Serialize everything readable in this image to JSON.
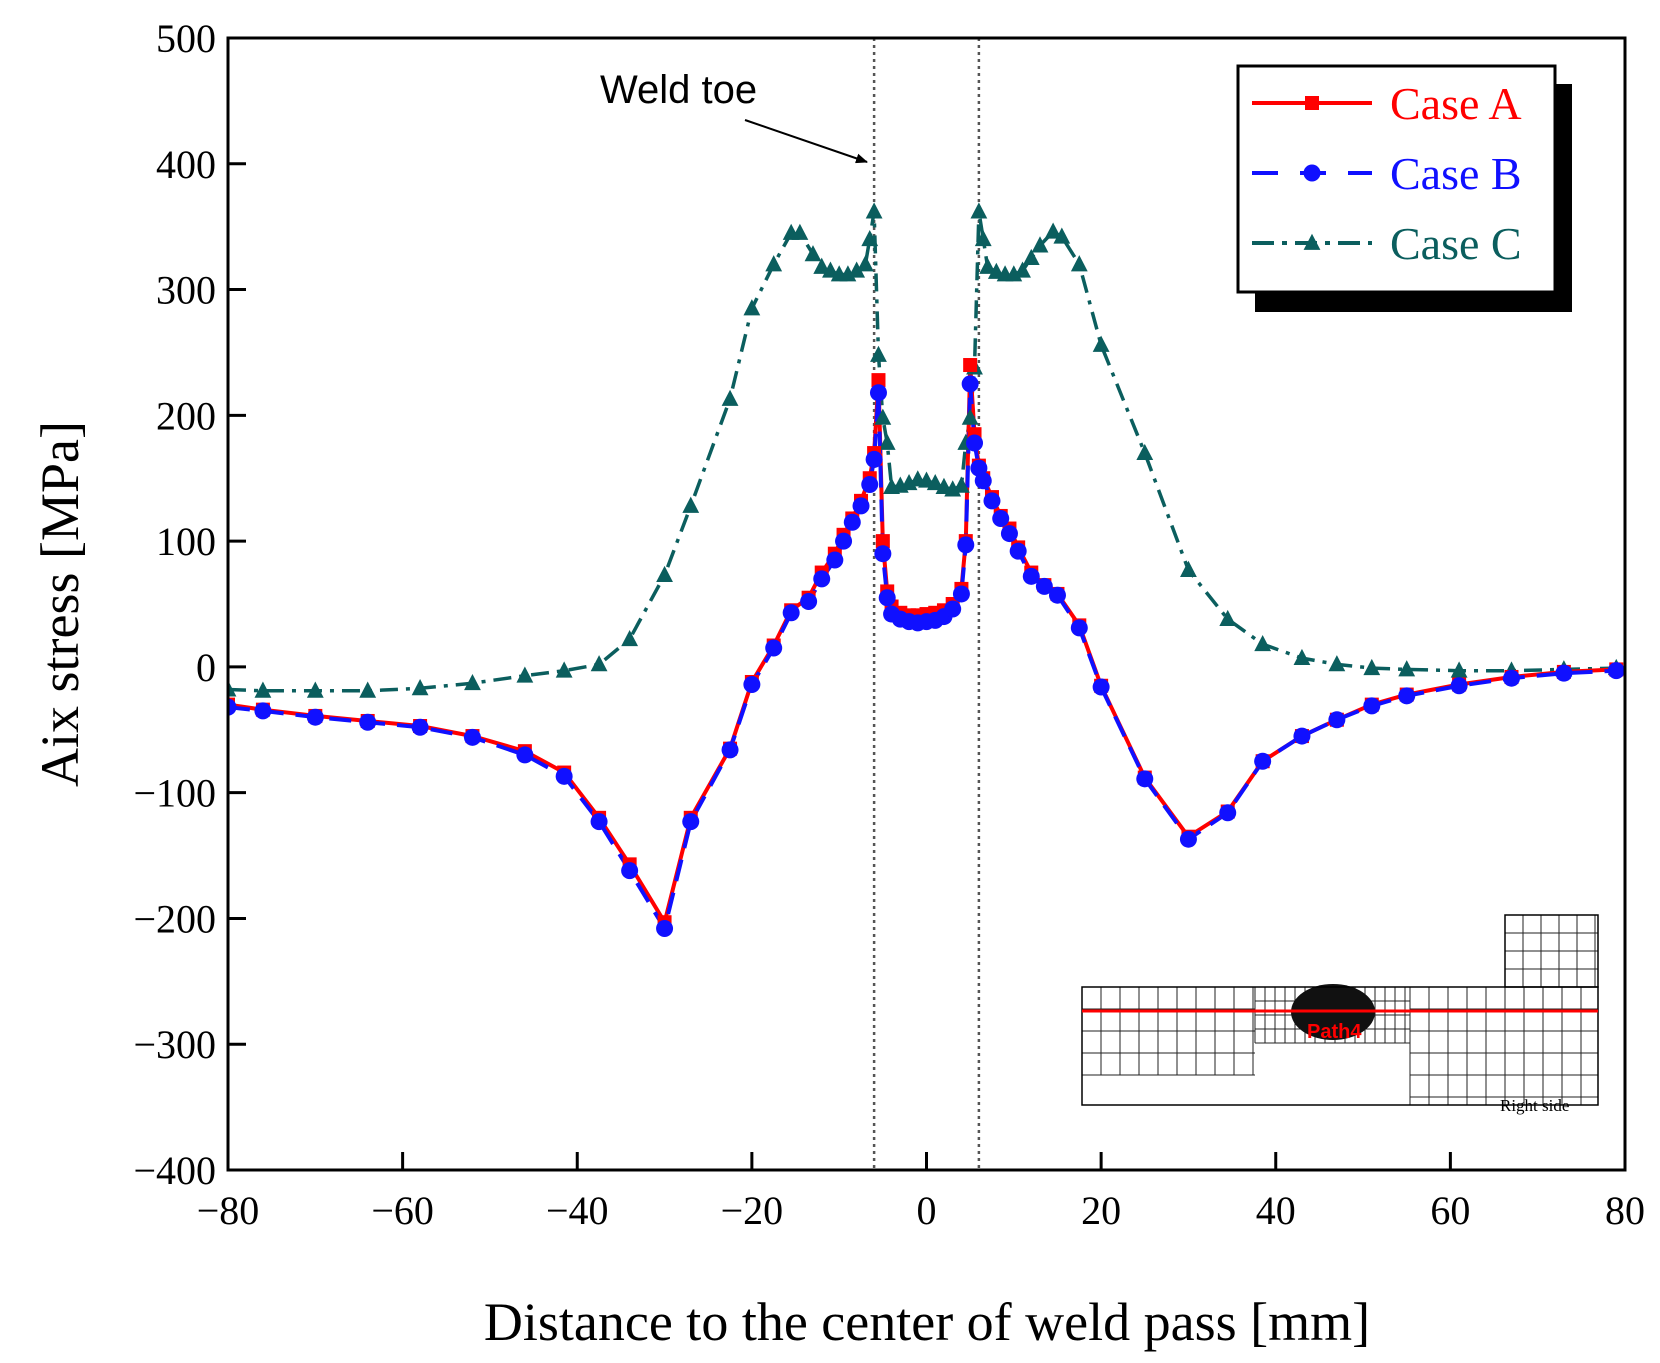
{
  "chart_data": {
    "type": "line",
    "xlabel": "Distance to the center of weld pass [mm]",
    "ylabel": "Aix stress [MPa]",
    "xlim": [
      -80,
      80
    ],
    "ylim": [
      -400,
      500
    ],
    "xticks": [
      -80,
      -60,
      -40,
      -20,
      0,
      20,
      40,
      60,
      80
    ],
    "yticks": [
      -400,
      -300,
      -200,
      -100,
      0,
      100,
      200,
      300,
      400,
      500
    ],
    "xtick_labels": [
      "−80",
      "−60",
      "−40",
      "−20",
      "0",
      "20",
      "40",
      "60",
      "80"
    ],
    "ytick_labels": [
      "−400",
      "−300",
      "−200",
      "−100",
      "0",
      "100",
      "200",
      "300",
      "400",
      "500"
    ],
    "grid": false,
    "legend_position": "top-right",
    "annotation": {
      "text": "Weld toe",
      "weld_toe_x": [
        -6,
        6
      ]
    },
    "inset": {
      "path_label": "Path4",
      "side_label": "Right side"
    },
    "series": [
      {
        "name": "Case A",
        "color": "#ff0000",
        "line_style": "solid",
        "marker": "square",
        "x": [
          -80,
          -76,
          -70,
          -64,
          -58,
          -52,
          -46,
          -41.5,
          -37.5,
          -34,
          -30,
          -27,
          -22.5,
          -20,
          -17.5,
          -15.5,
          -13.5,
          -12,
          -10.5,
          -9.5,
          -8.5,
          -7.5,
          -6.5,
          -6,
          -5.5,
          -5,
          -4.5,
          -4,
          -3,
          -2,
          -1,
          0,
          1,
          2,
          3,
          4,
          4.5,
          5,
          5.5,
          6,
          6.5,
          7.5,
          8.5,
          9.5,
          10.5,
          12,
          13.5,
          15,
          17.5,
          20,
          25,
          30,
          34.5,
          38.5,
          43,
          47,
          51,
          55,
          61,
          67,
          73,
          79
        ],
        "y": [
          -30,
          -34,
          -39,
          -43,
          -47,
          -55,
          -67,
          -84,
          -120,
          -157,
          -203,
          -120,
          -65,
          -12,
          17,
          45,
          55,
          75,
          90,
          105,
          118,
          132,
          150,
          170,
          228,
          100,
          60,
          48,
          43,
          41,
          41,
          42,
          43,
          45,
          50,
          62,
          100,
          240,
          185,
          160,
          150,
          135,
          120,
          110,
          95,
          75,
          65,
          58,
          33,
          -15,
          -88,
          -135,
          -115,
          -75,
          -55,
          -42,
          -30,
          -22,
          -14,
          -8,
          -4,
          -2
        ]
      },
      {
        "name": "Case B",
        "color": "#1010ff",
        "line_style": "dashed",
        "marker": "circle",
        "x": [
          -80,
          -76,
          -70,
          -64,
          -58,
          -52,
          -46,
          -41.5,
          -37.5,
          -34,
          -30,
          -27,
          -22.5,
          -20,
          -17.5,
          -15.5,
          -13.5,
          -12,
          -10.5,
          -9.5,
          -8.5,
          -7.5,
          -6.5,
          -6,
          -5.5,
          -5,
          -4.5,
          -4,
          -3,
          -2,
          -1,
          0,
          1,
          2,
          3,
          4,
          4.5,
          5,
          5.5,
          6,
          6.5,
          7.5,
          8.5,
          9.5,
          10.5,
          12,
          13.5,
          15,
          17.5,
          20,
          25,
          30,
          34.5,
          38.5,
          43,
          47,
          51,
          55,
          61,
          67,
          73,
          79
        ],
        "y": [
          -32,
          -35,
          -40,
          -44,
          -48,
          -56,
          -70,
          -87,
          -123,
          -162,
          -208,
          -123,
          -66,
          -14,
          15,
          43,
          52,
          70,
          85,
          100,
          115,
          128,
          145,
          165,
          218,
          90,
          55,
          42,
          38,
          36,
          35,
          36,
          37,
          40,
          46,
          58,
          97,
          225,
          178,
          158,
          148,
          132,
          118,
          106,
          92,
          72,
          64,
          57,
          31,
          -16,
          -89,
          -137,
          -116,
          -75,
          -55,
          -42,
          -31,
          -23,
          -15,
          -9,
          -5,
          -3
        ]
      },
      {
        "name": "Case C",
        "color": "#0b5e5e",
        "line_style": "dashdot",
        "marker": "triangle",
        "x": [
          -80,
          -76,
          -70,
          -64,
          -58,
          -52,
          -46,
          -41.5,
          -37.5,
          -34,
          -30,
          -27,
          -22.5,
          -20,
          -17.5,
          -15.5,
          -14.5,
          -13,
          -12,
          -11,
          -10,
          -9,
          -8,
          -7,
          -6.5,
          -6,
          -5.5,
          -5,
          -4.5,
          -4,
          -3,
          -2,
          -1,
          0,
          1,
          2,
          3,
          4,
          4.5,
          5,
          5.5,
          6,
          6.5,
          7,
          8,
          9,
          10,
          11,
          12,
          13,
          14.5,
          15.5,
          17.5,
          20,
          25,
          30,
          34.5,
          38.5,
          43,
          47,
          51,
          55,
          61,
          67,
          73,
          79
        ],
        "y": [
          -18,
          -19,
          -19,
          -19,
          -17,
          -13,
          -7,
          -3,
          2,
          22,
          73,
          128,
          213,
          285,
          320,
          345,
          345,
          328,
          318,
          315,
          312,
          312,
          315,
          320,
          340,
          362,
          248,
          198,
          178,
          143,
          144,
          146,
          149,
          148,
          146,
          143,
          141,
          144,
          178,
          198,
          238,
          362,
          340,
          318,
          314,
          312,
          312,
          315,
          325,
          335,
          346,
          342,
          320,
          256,
          170,
          77,
          38,
          18,
          7,
          2,
          -1,
          -2,
          -3,
          -3,
          -2,
          -1
        ]
      }
    ]
  }
}
